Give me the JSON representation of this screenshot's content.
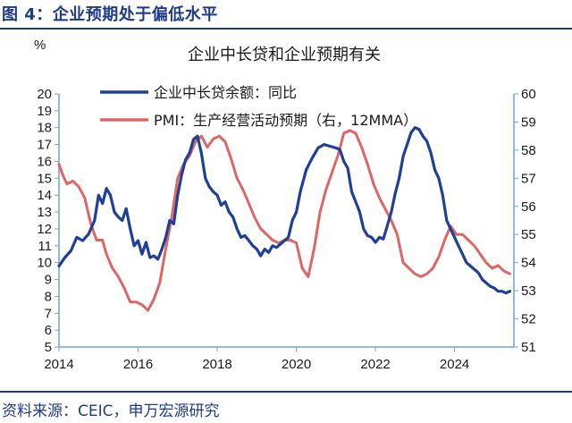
{
  "figure": {
    "title": "图 4：企业预期处于偏低水平",
    "source": "资料来源：CEIC，申万宏源研究"
  },
  "chart_data": {
    "type": "line",
    "title": "企业中长贷和企业预期有关",
    "y_unit": "%",
    "x_ticks": [
      "2014",
      "2016",
      "2018",
      "2020",
      "2022",
      "2024"
    ],
    "xlim": [
      2014,
      2025.5
    ],
    "ylim": [
      5,
      20
    ],
    "y2lim": [
      51,
      60
    ],
    "y_ticks": [
      "5",
      "6",
      "7",
      "8",
      "9",
      "10",
      "11",
      "12",
      "13",
      "14",
      "15",
      "16",
      "17",
      "18",
      "19",
      "20"
    ],
    "y2_ticks": [
      "51",
      "52",
      "53",
      "54",
      "55",
      "56",
      "57",
      "58",
      "59",
      "60"
    ],
    "legend_position": "top-left",
    "grid": false,
    "series": [
      {
        "name": "企业中长贷余额：同比",
        "axis": "left",
        "color": "#1f3f99",
        "x": [
          2014.0,
          2014.15,
          2014.3,
          2014.45,
          2014.6,
          2014.75,
          2014.9,
          2015.0,
          2015.1,
          2015.2,
          2015.3,
          2015.4,
          2015.5,
          2015.6,
          2015.7,
          2015.8,
          2015.9,
          2016.0,
          2016.1,
          2016.2,
          2016.3,
          2016.4,
          2016.5,
          2016.6,
          2016.7,
          2016.8,
          2016.9,
          2017.0,
          2017.1,
          2017.2,
          2017.3,
          2017.4,
          2017.5,
          2017.6,
          2017.7,
          2017.8,
          2017.9,
          2018.0,
          2018.1,
          2018.2,
          2018.3,
          2018.4,
          2018.5,
          2018.6,
          2018.7,
          2018.8,
          2018.9,
          2019.0,
          2019.1,
          2019.2,
          2019.3,
          2019.4,
          2019.5,
          2019.6,
          2019.7,
          2019.8,
          2019.9,
          2020.0,
          2020.1,
          2020.25,
          2020.4,
          2020.55,
          2020.7,
          2020.85,
          2021.0,
          2021.1,
          2021.2,
          2021.3,
          2021.4,
          2021.5,
          2021.6,
          2021.7,
          2021.8,
          2021.9,
          2022.0,
          2022.1,
          2022.2,
          2022.3,
          2022.4,
          2022.5,
          2022.6,
          2022.7,
          2022.8,
          2022.9,
          2023.0,
          2023.1,
          2023.2,
          2023.3,
          2023.4,
          2023.5,
          2023.6,
          2023.7,
          2023.8,
          2023.9,
          2024.0,
          2024.1,
          2024.2,
          2024.3,
          2024.4,
          2024.5,
          2024.6,
          2024.7,
          2024.8,
          2024.9,
          2025.0,
          2025.1,
          2025.2,
          2025.3,
          2025.4
        ],
        "values": [
          9.8,
          10.3,
          10.7,
          11.5,
          11.3,
          11.7,
          12.5,
          14.0,
          13.5,
          14.4,
          14.0,
          13.0,
          12.7,
          12.5,
          13.2,
          12.0,
          11.0,
          11.3,
          10.5,
          11.2,
          10.3,
          10.4,
          10.2,
          10.8,
          11.5,
          12.5,
          12.3,
          14.0,
          15.2,
          16.1,
          16.5,
          17.3,
          17.5,
          16.5,
          15.0,
          14.5,
          14.2,
          14.0,
          13.4,
          13.6,
          13.0,
          12.7,
          12.0,
          11.5,
          11.6,
          11.3,
          11.0,
          10.8,
          10.4,
          10.8,
          10.6,
          11.0,
          10.9,
          11.1,
          11.3,
          11.5,
          12.5,
          13.0,
          14.2,
          15.5,
          16.2,
          16.8,
          17.0,
          16.9,
          16.8,
          16.7,
          16.0,
          15.6,
          14.2,
          13.6,
          13.0,
          12.0,
          11.6,
          11.5,
          11.2,
          11.5,
          11.4,
          12.2,
          13.0,
          14.1,
          15.0,
          16.3,
          17.0,
          17.7,
          18.0,
          17.9,
          17.5,
          17.2,
          16.5,
          15.5,
          15.0,
          14.0,
          12.5,
          12.0,
          11.5,
          11.0,
          10.5,
          10.0,
          9.8,
          9.6,
          9.4,
          9.0,
          8.8,
          8.6,
          8.5,
          8.3,
          8.3,
          8.2,
          8.3
        ]
      },
      {
        "name": "PMI：生产经营活动预期（右，12MMA）",
        "axis": "right",
        "color": "#e06666",
        "x": [
          2014.0,
          2014.1,
          2014.2,
          2014.35,
          2014.5,
          2014.65,
          2014.8,
          2014.95,
          2015.1,
          2015.2,
          2015.35,
          2015.5,
          2015.65,
          2015.8,
          2015.95,
          2016.1,
          2016.25,
          2016.4,
          2016.55,
          2016.7,
          2016.85,
          2017.0,
          2017.15,
          2017.3,
          2017.45,
          2017.6,
          2017.75,
          2017.9,
          2018.05,
          2018.2,
          2018.35,
          2018.5,
          2018.65,
          2018.8,
          2018.95,
          2019.1,
          2019.25,
          2019.4,
          2019.55,
          2019.7,
          2019.85,
          2020.0,
          2020.15,
          2020.3,
          2020.45,
          2020.6,
          2020.75,
          2020.9,
          2021.05,
          2021.2,
          2021.35,
          2021.5,
          2021.65,
          2021.8,
          2021.95,
          2022.1,
          2022.25,
          2022.4,
          2022.55,
          2022.7,
          2022.85,
          2023.0,
          2023.15,
          2023.3,
          2023.45,
          2023.6,
          2023.75,
          2023.9,
          2024.05,
          2024.2,
          2024.35,
          2024.5,
          2024.65,
          2024.8,
          2024.95,
          2025.1,
          2025.25,
          2025.4
        ],
        "values": [
          57.5,
          57.1,
          56.8,
          56.9,
          56.7,
          56.3,
          55.4,
          54.8,
          54.8,
          54.3,
          53.8,
          53.5,
          53.1,
          52.6,
          52.6,
          52.5,
          52.3,
          52.7,
          53.3,
          54.5,
          55.6,
          57.0,
          57.5,
          57.8,
          58.3,
          58.5,
          58.1,
          58.4,
          58.5,
          58.3,
          57.7,
          57.0,
          56.6,
          56.1,
          55.6,
          55.2,
          55.0,
          54.8,
          54.7,
          54.8,
          54.8,
          54.7,
          53.8,
          53.5,
          54.5,
          55.8,
          56.6,
          57.2,
          57.8,
          58.6,
          58.7,
          58.6,
          58.1,
          57.5,
          56.8,
          56.3,
          55.9,
          55.5,
          55.0,
          54.0,
          53.8,
          53.6,
          53.5,
          53.6,
          53.8,
          54.2,
          54.8,
          55.3,
          55.0,
          55.0,
          54.8,
          54.6,
          54.3,
          54.0,
          53.8,
          53.9,
          53.7,
          53.6
        ]
      }
    ]
  }
}
